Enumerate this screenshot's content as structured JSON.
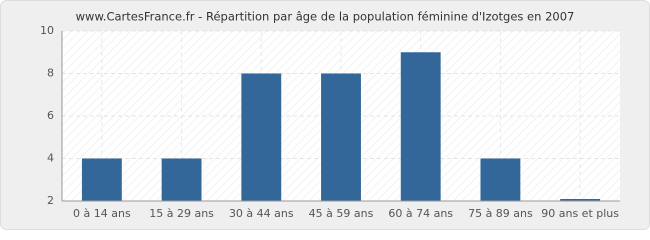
{
  "chart_data": {
    "type": "bar",
    "title": "www.CartesFrance.fr - Répartition par âge de la population féminine d'Izotges en 2007",
    "categories": [
      "0 à 14 ans",
      "15 à 29 ans",
      "30 à 44 ans",
      "45 à 59 ans",
      "60 à 74 ans",
      "75 à 89 ans",
      "90 ans et plus"
    ],
    "values": [
      4,
      4,
      8,
      8,
      9,
      4,
      2
    ],
    "color": "#336699",
    "ylim": [
      2,
      10
    ],
    "yticks": [
      2,
      4,
      6,
      8,
      10
    ],
    "grid": true
  }
}
